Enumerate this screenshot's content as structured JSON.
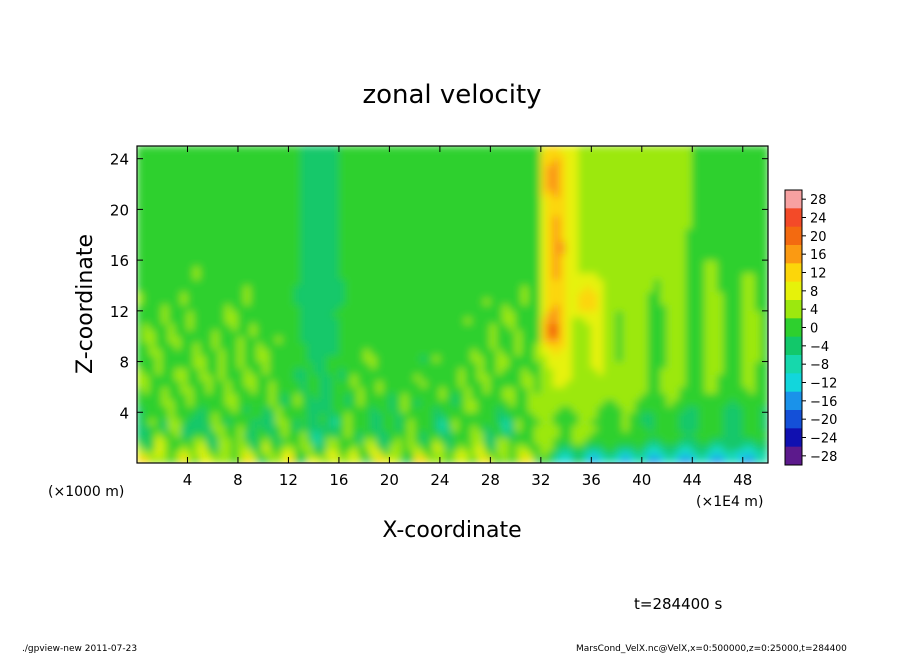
{
  "chart_data": {
    "type": "heatmap",
    "title": "zonal velocity",
    "xlabel": "X-coordinate",
    "ylabel": "Z-coordinate",
    "x_unit_left": "(×1000 m)",
    "x_unit_right": "(×1E4 m)",
    "xlim": [
      0,
      50
    ],
    "ylim": [
      0,
      25
    ],
    "xticks": [
      4,
      8,
      12,
      16,
      20,
      24,
      28,
      32,
      36,
      40,
      44,
      48
    ],
    "yticks": [
      4,
      8,
      12,
      16,
      20,
      24
    ],
    "colorbar": {
      "levels": [
        28,
        24,
        20,
        16,
        12,
        8,
        4,
        0,
        -4,
        -8,
        -12,
        -16,
        -20,
        -24,
        -28
      ],
      "labels": [
        "28",
        "24",
        "20",
        "16",
        "12",
        "8",
        "4",
        "0",
        "−4",
        "−8",
        "−12",
        "−16",
        "−20",
        "−24",
        "−28"
      ],
      "colors": [
        "#f7a1a1",
        "#f34a28",
        "#f36a10",
        "#fb9a12",
        "#fcd60a",
        "#e6f20a",
        "#9ce80e",
        "#2ed02e",
        "#12c86a",
        "#16d8ac",
        "#12d6dc",
        "#1a92ea",
        "#1450d8",
        "#1010b0",
        "#5c1a8c"
      ]
    },
    "field_description": {
      "background_mean": 0,
      "upstream_x_range": [
        0,
        32
      ],
      "downstream_x_range": [
        32,
        50
      ]
    }
  },
  "annotation_time": "t=284400 s",
  "footer_left": "./gpview-new   2011-07-23",
  "footer_right": "MarsCond_VelX.nc@VelX,x=0:500000,z=0:25000,t=284400"
}
